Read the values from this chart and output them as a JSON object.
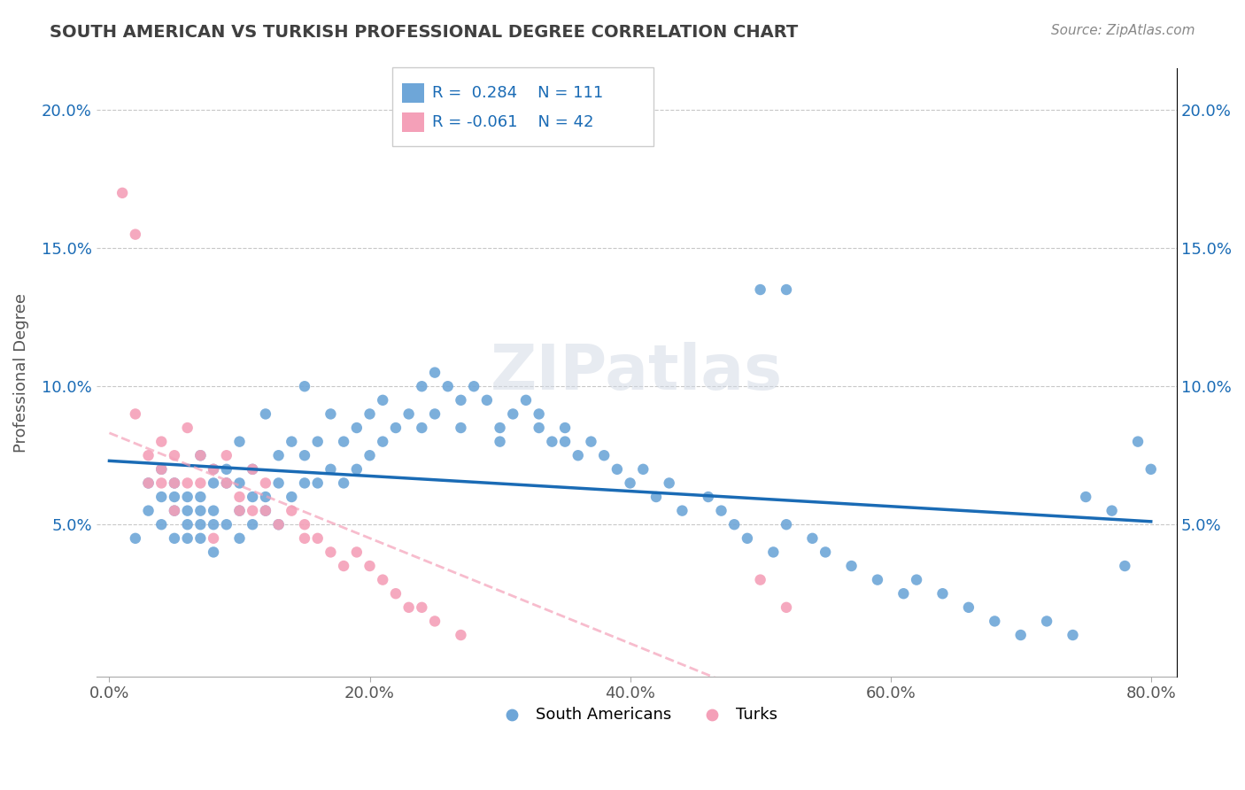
{
  "title": "SOUTH AMERICAN VS TURKISH PROFESSIONAL DEGREE CORRELATION CHART",
  "source_text": "Source: ZipAtlas.com",
  "ylabel": "Professional Degree",
  "xlabel": "",
  "watermark": "ZIPatlas",
  "xlim": [
    0.0,
    0.8
  ],
  "ylim": [
    0.0,
    0.21
  ],
  "xtick_labels": [
    "0.0%",
    "20.0%",
    "40.0%",
    "60.0%",
    "80.0%"
  ],
  "xtick_vals": [
    0.0,
    0.2,
    0.4,
    0.6,
    0.8
  ],
  "ytick_labels": [
    "5.0%",
    "10.0%",
    "15.0%",
    "20.0%"
  ],
  "ytick_vals": [
    0.05,
    0.1,
    0.15,
    0.2
  ],
  "south_american_R": 0.284,
  "south_american_N": 111,
  "turkish_R": -0.061,
  "turkish_N": 42,
  "sa_color": "#6ea6d8",
  "turk_color": "#f4a0b8",
  "sa_line_color": "#1a6bb5",
  "turk_line_color": "#f4a0b8",
  "background_color": "#ffffff",
  "grid_color": "#c8c8c8",
  "title_color": "#404040",
  "sa_scatter_x": [
    0.02,
    0.03,
    0.03,
    0.04,
    0.04,
    0.04,
    0.05,
    0.05,
    0.05,
    0.05,
    0.06,
    0.06,
    0.06,
    0.06,
    0.07,
    0.07,
    0.07,
    0.07,
    0.07,
    0.08,
    0.08,
    0.08,
    0.08,
    0.08,
    0.09,
    0.09,
    0.09,
    0.1,
    0.1,
    0.1,
    0.1,
    0.11,
    0.11,
    0.11,
    0.12,
    0.12,
    0.12,
    0.13,
    0.13,
    0.13,
    0.14,
    0.14,
    0.15,
    0.15,
    0.15,
    0.16,
    0.16,
    0.17,
    0.17,
    0.18,
    0.18,
    0.19,
    0.19,
    0.2,
    0.2,
    0.21,
    0.21,
    0.22,
    0.23,
    0.24,
    0.24,
    0.25,
    0.25,
    0.26,
    0.27,
    0.27,
    0.28,
    0.29,
    0.3,
    0.31,
    0.32,
    0.33,
    0.33,
    0.34,
    0.35,
    0.36,
    0.37,
    0.38,
    0.39,
    0.4,
    0.41,
    0.42,
    0.43,
    0.44,
    0.46,
    0.47,
    0.48,
    0.49,
    0.51,
    0.52,
    0.54,
    0.55,
    0.57,
    0.59,
    0.61,
    0.62,
    0.64,
    0.66,
    0.68,
    0.7,
    0.72,
    0.74,
    0.75,
    0.77,
    0.78,
    0.79,
    0.8,
    0.5,
    0.52,
    0.3,
    0.35
  ],
  "sa_scatter_y": [
    0.045,
    0.055,
    0.065,
    0.07,
    0.06,
    0.05,
    0.055,
    0.045,
    0.06,
    0.065,
    0.05,
    0.06,
    0.055,
    0.045,
    0.075,
    0.06,
    0.055,
    0.05,
    0.045,
    0.065,
    0.055,
    0.07,
    0.05,
    0.04,
    0.065,
    0.07,
    0.05,
    0.08,
    0.055,
    0.065,
    0.045,
    0.07,
    0.06,
    0.05,
    0.09,
    0.06,
    0.055,
    0.075,
    0.065,
    0.05,
    0.08,
    0.06,
    0.1,
    0.075,
    0.065,
    0.08,
    0.065,
    0.09,
    0.07,
    0.08,
    0.065,
    0.085,
    0.07,
    0.09,
    0.075,
    0.095,
    0.08,
    0.085,
    0.09,
    0.1,
    0.085,
    0.105,
    0.09,
    0.1,
    0.095,
    0.085,
    0.1,
    0.095,
    0.085,
    0.09,
    0.095,
    0.085,
    0.09,
    0.08,
    0.085,
    0.075,
    0.08,
    0.075,
    0.07,
    0.065,
    0.07,
    0.06,
    0.065,
    0.055,
    0.06,
    0.055,
    0.05,
    0.045,
    0.04,
    0.05,
    0.045,
    0.04,
    0.035,
    0.03,
    0.025,
    0.03,
    0.025,
    0.02,
    0.015,
    0.01,
    0.015,
    0.01,
    0.06,
    0.055,
    0.035,
    0.08,
    0.07,
    0.135,
    0.135,
    0.08,
    0.08
  ],
  "turk_scatter_x": [
    0.01,
    0.02,
    0.02,
    0.03,
    0.03,
    0.04,
    0.04,
    0.04,
    0.05,
    0.05,
    0.05,
    0.06,
    0.06,
    0.07,
    0.07,
    0.08,
    0.08,
    0.09,
    0.09,
    0.1,
    0.1,
    0.11,
    0.11,
    0.12,
    0.12,
    0.13,
    0.14,
    0.15,
    0.15,
    0.16,
    0.17,
    0.18,
    0.19,
    0.2,
    0.21,
    0.22,
    0.23,
    0.24,
    0.25,
    0.27,
    0.5,
    0.52
  ],
  "turk_scatter_y": [
    0.17,
    0.155,
    0.09,
    0.075,
    0.065,
    0.08,
    0.07,
    0.065,
    0.075,
    0.065,
    0.055,
    0.085,
    0.065,
    0.075,
    0.065,
    0.07,
    0.045,
    0.075,
    0.065,
    0.06,
    0.055,
    0.07,
    0.055,
    0.065,
    0.055,
    0.05,
    0.055,
    0.05,
    0.045,
    0.045,
    0.04,
    0.035,
    0.04,
    0.035,
    0.03,
    0.025,
    0.02,
    0.02,
    0.015,
    0.01,
    0.03,
    0.02
  ]
}
